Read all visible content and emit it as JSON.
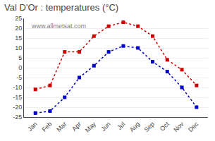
{
  "chart_data": {
    "type": "line",
    "title": "Val D'Or : temperatures (°C)",
    "categories": [
      "Jan",
      "Feb",
      "Mar",
      "Apr",
      "May",
      "Jun",
      "Jul",
      "Aug",
      "Sep",
      "Oct",
      "Nov",
      "Dec"
    ],
    "series": [
      {
        "color": "#cc0000",
        "marker": "square",
        "line_style": "dotted",
        "values": [
          -11,
          -9,
          8,
          8,
          16,
          21,
          23,
          21,
          16,
          4,
          -1,
          -9
        ]
      },
      {
        "color": "#0000cc",
        "marker": "square",
        "line_style": "dotted",
        "values": [
          -23,
          -22,
          -15,
          -5,
          1,
          8,
          11,
          10,
          3,
          -2,
          -10,
          -20
        ]
      }
    ],
    "ylim": [
      -25,
      25
    ],
    "yticks": [
      -25,
      -20,
      -15,
      -10,
      -5,
      0,
      5,
      10,
      15,
      20,
      25
    ],
    "grid": true,
    "annotations": [
      "www.allmetsat.com"
    ]
  }
}
